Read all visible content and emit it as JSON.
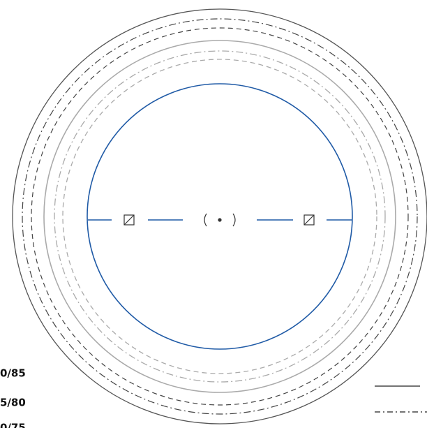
{
  "labels": [
    "0/85",
    "5/80",
    "0/75"
  ]
}
